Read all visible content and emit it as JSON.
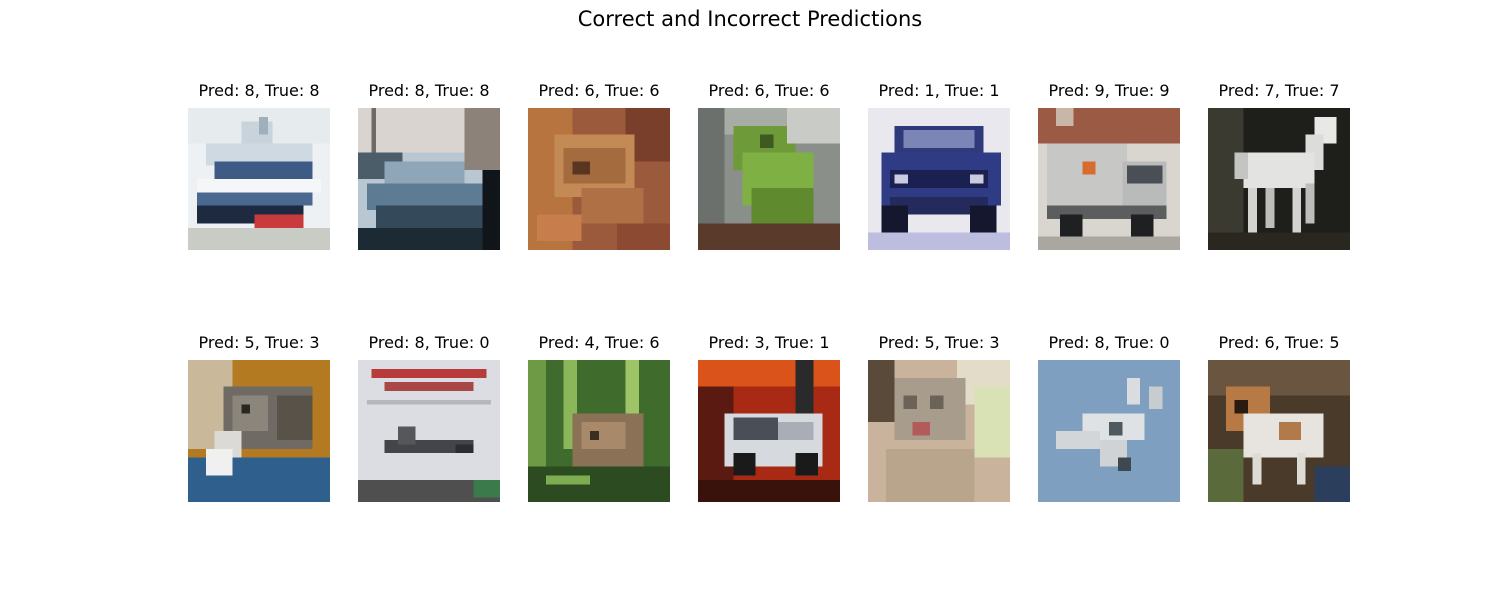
{
  "figure": {
    "title": "Correct and Incorrect Predictions"
  },
  "rows": [
    {
      "panels": [
        {
          "title": "Pred: 8, True: 8",
          "subject": "ship",
          "pred": 8,
          "true": 8
        },
        {
          "title": "Pred: 8, True: 8",
          "subject": "ship",
          "pred": 8,
          "true": 8
        },
        {
          "title": "Pred: 6, True: 6",
          "subject": "frog",
          "pred": 6,
          "true": 6
        },
        {
          "title": "Pred: 6, True: 6",
          "subject": "frog",
          "pred": 6,
          "true": 6
        },
        {
          "title": "Pred: 1, True: 1",
          "subject": "automobile",
          "pred": 1,
          "true": 1
        },
        {
          "title": "Pred: 9, True: 9",
          "subject": "truck",
          "pred": 9,
          "true": 9
        },
        {
          "title": "Pred: 7, True: 7",
          "subject": "horse",
          "pred": 7,
          "true": 7
        }
      ]
    },
    {
      "panels": [
        {
          "title": "Pred: 5, True: 3",
          "subject": "cat",
          "pred": 5,
          "true": 3
        },
        {
          "title": "Pred: 8, True: 0",
          "subject": "airplane",
          "pred": 8,
          "true": 0
        },
        {
          "title": "Pred: 4, True: 6",
          "subject": "frog",
          "pred": 4,
          "true": 6
        },
        {
          "title": "Pred: 3, True: 1",
          "subject": "automobile",
          "pred": 3,
          "true": 1
        },
        {
          "title": "Pred: 5, True: 3",
          "subject": "cat",
          "pred": 5,
          "true": 3
        },
        {
          "title": "Pred: 8, True: 0",
          "subject": "airplane",
          "pred": 8,
          "true": 0
        },
        {
          "title": "Pred: 6, True: 5",
          "subject": "dog",
          "pred": 6,
          "true": 5
        }
      ]
    }
  ]
}
